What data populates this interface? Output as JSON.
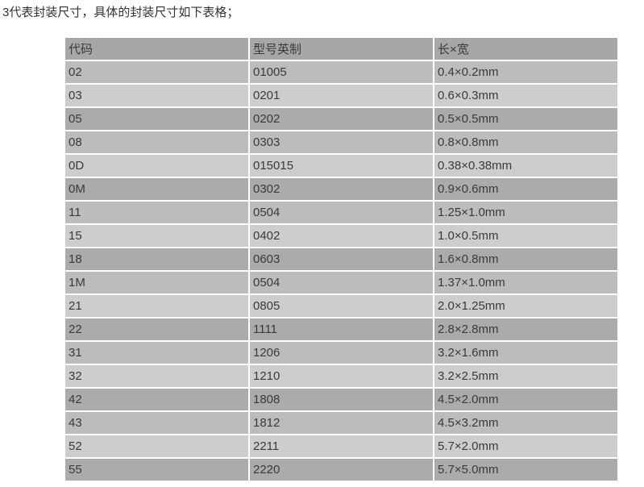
{
  "intro": "3代表封装尺寸，具体的封装尺寸如下表格；",
  "colors": {
    "background": "#ffffff",
    "header": "#a7a7a7",
    "row_medium": "#bcbcbc",
    "row_light": "#cdcdcd",
    "row_dark": "#ababab",
    "text": "#3a3a3a",
    "intro_text": "#333333"
  },
  "table": {
    "headers": [
      "代码",
      "型号英制",
      "长×宽"
    ],
    "row_shade_cycle": [
      "medium",
      "light",
      "dark"
    ],
    "rows": [
      [
        "02",
        "01005",
        "0.4×0.2mm"
      ],
      [
        "03",
        "0201",
        "0.6×0.3mm"
      ],
      [
        "05",
        "0202",
        "0.5×0.5mm"
      ],
      [
        "08",
        "0303",
        "0.8×0.8mm"
      ],
      [
        "0D",
        "015015",
        "0.38×0.38mm"
      ],
      [
        "0M",
        "0302",
        "0.9×0.6mm"
      ],
      [
        "11",
        "0504",
        "1.25×1.0mm"
      ],
      [
        "15",
        "0402",
        "1.0×0.5mm"
      ],
      [
        "18",
        "0603",
        "1.6×0.8mm"
      ],
      [
        "1M",
        "0504",
        "1.37×1.0mm"
      ],
      [
        "21",
        "0805",
        "2.0×1.25mm"
      ],
      [
        "22",
        "1111",
        "2.8×2.8mm"
      ],
      [
        "31",
        "1206",
        "3.2×1.6mm"
      ],
      [
        "32",
        "1210",
        "3.2×2.5mm"
      ],
      [
        "42",
        "1808",
        "4.5×2.0mm"
      ],
      [
        "43",
        "1812",
        "4.5×3.2mm"
      ],
      [
        "52",
        "2211",
        "5.7×2.0mm"
      ],
      [
        "55",
        "2220",
        "5.7×5.0mm"
      ]
    ]
  }
}
